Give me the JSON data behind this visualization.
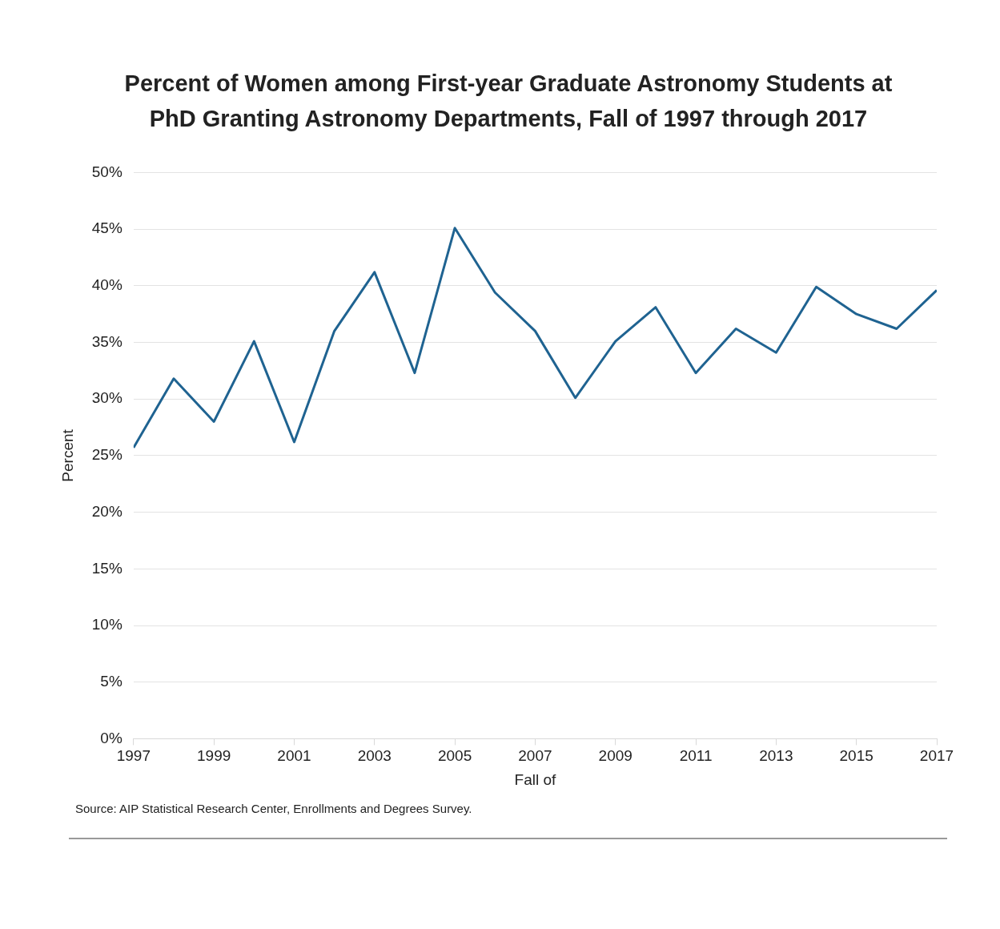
{
  "chart_data": {
    "type": "line",
    "title": "Percent of Women among First-year Graduate Astronomy Students at PhD Granting Astronomy Departments, Fall of 1997 through 2017",
    "xlabel": "Fall of",
    "ylabel": "Percent",
    "x": [
      1997,
      1998,
      1999,
      2000,
      2001,
      2002,
      2003,
      2004,
      2005,
      2006,
      2007,
      2008,
      2009,
      2010,
      2011,
      2012,
      2013,
      2014,
      2015,
      2016,
      2017
    ],
    "series": [
      {
        "color": "#1f6391",
        "values": [
          25.7,
          31.8,
          28.0,
          35.1,
          26.2,
          36.0,
          41.2,
          32.3,
          45.1,
          39.4,
          36.0,
          30.1,
          35.1,
          38.1,
          32.3,
          36.2,
          34.1,
          39.9,
          37.5,
          36.2,
          39.6
        ]
      }
    ],
    "xlim": [
      1997,
      2017
    ],
    "xticks": [
      1997,
      1999,
      2001,
      2003,
      2005,
      2007,
      2009,
      2011,
      2013,
      2015,
      2017
    ],
    "ylim": [
      0,
      50
    ],
    "yticks": [
      {
        "value": 0,
        "label": "0%"
      },
      {
        "value": 5,
        "label": "5%"
      },
      {
        "value": 10,
        "label": "10%"
      },
      {
        "value": 15,
        "label": "15%"
      },
      {
        "value": 20,
        "label": "20%"
      },
      {
        "value": 25,
        "label": "25%"
      },
      {
        "value": 30,
        "label": "30%"
      },
      {
        "value": 35,
        "label": "35%"
      },
      {
        "value": 40,
        "label": "40%"
      },
      {
        "value": 45,
        "label": "45%"
      },
      {
        "value": 50,
        "label": "50%"
      }
    ],
    "grid": "y",
    "legend": false,
    "marker": "none",
    "line_style": "solid",
    "annotations": [
      "Source: AIP Statistical Research Center, Enrollments and Degrees Survey."
    ]
  }
}
